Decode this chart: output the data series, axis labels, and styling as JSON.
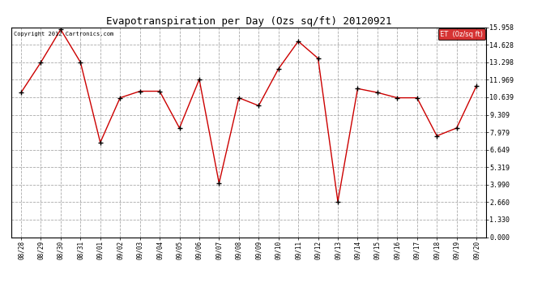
{
  "title": "Evapotranspiration per Day (Ozs sq/ft) 20120921",
  "background_color": "#ffffff",
  "plot_bg_color": "#ffffff",
  "line_color": "#cc0000",
  "marker_color": "#000000",
  "legend_label": "ET  (0z/sq ft)",
  "legend_bg": "#cc0000",
  "legend_text_color": "#ffffff",
  "copyright_text": "Copyright 2012 Cartronics.com",
  "yticks": [
    0.0,
    1.33,
    2.66,
    3.99,
    5.319,
    6.649,
    7.979,
    9.309,
    10.639,
    11.969,
    13.298,
    14.628,
    15.958
  ],
  "ylim": [
    0,
    15.958
  ],
  "dates": [
    "08/28",
    "08/29",
    "08/30",
    "08/31",
    "09/01",
    "09/02",
    "09/03",
    "09/04",
    "09/05",
    "09/06",
    "09/07",
    "09/08",
    "09/09",
    "09/10",
    "09/11",
    "09/12",
    "09/13",
    "09/14",
    "09/15",
    "09/16",
    "09/17",
    "09/18",
    "09/19",
    "09/20"
  ],
  "values": [
    11.0,
    13.3,
    15.8,
    13.3,
    7.2,
    10.6,
    11.1,
    11.1,
    8.3,
    12.0,
    4.1,
    10.6,
    10.0,
    12.8,
    14.9,
    13.6,
    2.7,
    11.3,
    11.0,
    10.6,
    10.6,
    7.7,
    8.3,
    11.5
  ]
}
